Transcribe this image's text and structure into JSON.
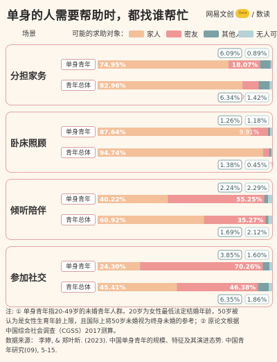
{
  "title": "单身的人需要帮助时，都找谁帮忙",
  "logo": {
    "text": "网易文创",
    "badge": "Data",
    "suffix": "/ 数读"
  },
  "header": {
    "scene_label": "场景",
    "object_label": "可能的求助对象："
  },
  "legend": [
    {
      "name": "家人",
      "color": "#f3c09a"
    },
    {
      "name": "密友",
      "color": "#ee9795"
    },
    {
      "name": "其他人",
      "color": "#7aa1a3"
    },
    {
      "name": "无人可找",
      "color": "#b7d2d6"
    }
  ],
  "chart_data": {
    "type": "bar",
    "orientation": "horizontal",
    "stacked": true,
    "xlim": [
      0,
      100
    ],
    "series_names": [
      "家人",
      "密友",
      "其他人",
      "无人可找"
    ],
    "colors": [
      "#f3c09a",
      "#ee9795",
      "#7aa1a3",
      "#b7d2d6"
    ],
    "groups": [
      {
        "scene": "分担家务",
        "rows": [
          {
            "label": "单身青年",
            "values": [
              74.95,
              18.07,
              6.09,
              0.89
            ],
            "labels": [
              "74.95%",
              "18.07%",
              "6.09%",
              "0.89%"
            ]
          },
          {
            "label": "青年总体",
            "values": [
              82.96,
              9.28,
              6.34,
              1.42
            ],
            "labels": [
              "82.96%",
              "9.28%",
              "6.34%",
              "1.42%"
            ]
          }
        ]
      },
      {
        "scene": "卧床照顾",
        "rows": [
          {
            "label": "单身青年",
            "values": [
              87.64,
              9.91,
              1.26,
              1.18
            ],
            "labels": [
              "87.64%",
              "9.91%",
              "1.26%",
              "1.18%"
            ]
          },
          {
            "label": "青年总体",
            "values": [
              94.74,
              3.42,
              1.38,
              0.45
            ],
            "labels": [
              "94.74%",
              "3.42%",
              "1.38%",
              "0.45%"
            ]
          }
        ]
      },
      {
        "scene": "倾听陪伴",
        "rows": [
          {
            "label": "单身青年",
            "values": [
              40.22,
              55.25,
              2.24,
              2.29
            ],
            "labels": [
              "40.22%",
              "55.25%",
              "2.24%",
              "2.29%"
            ]
          },
          {
            "label": "青年总体",
            "values": [
              60.92,
              35.27,
              1.69,
              2.12
            ],
            "labels": [
              "60.92%",
              "35.27%",
              "1.69%",
              "2.12%"
            ]
          }
        ]
      },
      {
        "scene": "参加社交",
        "rows": [
          {
            "label": "单身青年",
            "values": [
              24.3,
              70.26,
              3.85,
              1.6
            ],
            "labels": [
              "24.30%",
              "70.26%",
              "3.85%",
              "1.60%"
            ]
          },
          {
            "label": "青年总体",
            "values": [
              45.41,
              46.38,
              6.35,
              1.86
            ],
            "labels": [
              "45.41%",
              "46.38%",
              "6.35%",
              "1.86%"
            ]
          }
        ]
      }
    ]
  },
  "footnote": {
    "line1": "注: ① 单身青年指20-49岁的未婚青年人群。20岁为女性最低法定结婚年龄，50岁被",
    "line2": "认为是女性生育年龄上限，且国际上将50岁未婚视为终身未婚的参考；② 原论文根据",
    "line3": "中国综合社会调查（CGSS）2017测算。",
    "line4": "数据来源： 李婷, & 郑叶昕. (2023). 中国单身青年的规模、特征及其演进态势. 中国青",
    "line5": "年研究(09), 5-15."
  }
}
